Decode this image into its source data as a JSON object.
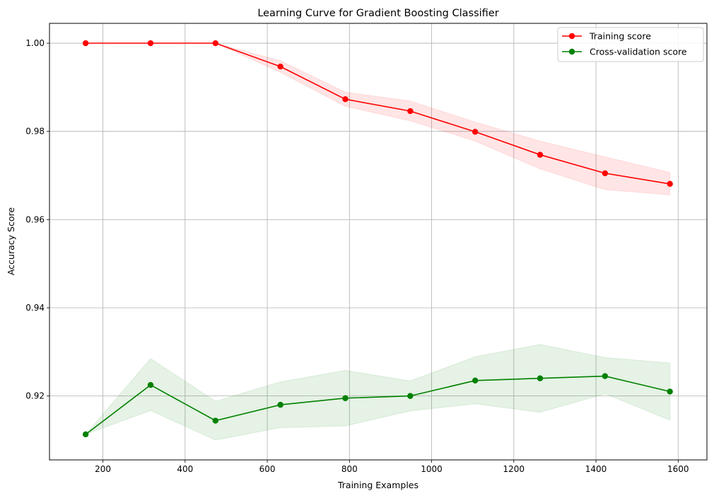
{
  "chart_data": {
    "type": "line",
    "title": "Learning Curve for Gradient Boosting Classifier",
    "xlabel": "Training Examples",
    "ylabel": "Accuracy Score",
    "xlim": [
      70,
      1670
    ],
    "ylim": [
      0.9055,
      1.0045
    ],
    "xticks": [
      200,
      400,
      600,
      800,
      1000,
      1200,
      1400,
      1600
    ],
    "yticks": [
      0.92,
      0.94,
      0.96,
      0.98,
      1.0
    ],
    "ytick_labels": [
      "0.92",
      "0.94",
      "0.96",
      "0.98",
      "1.00"
    ],
    "grid": true,
    "legend_position": "top-right",
    "x": [
      158,
      316,
      474,
      632,
      790,
      948,
      1106,
      1264,
      1422,
      1580
    ],
    "series": [
      {
        "name": "Training score",
        "color": "#ff0000",
        "band_color": "#ff0000",
        "values": [
          1.0,
          1.0,
          1.0,
          0.9947,
          0.9873,
          0.9846,
          0.9799,
          0.9747,
          0.9705,
          0.9681
        ],
        "lower": [
          1.0,
          1.0,
          1.0,
          0.9934,
          0.9857,
          0.9824,
          0.9778,
          0.9715,
          0.9668,
          0.9656
        ],
        "upper": [
          1.0,
          1.0,
          1.0,
          0.996,
          0.9889,
          0.9869,
          0.9821,
          0.9778,
          0.9742,
          0.9707
        ]
      },
      {
        "name": "Cross-validation score",
        "color": "#008000",
        "band_color": "#008000",
        "values": [
          0.9113,
          0.9225,
          0.9144,
          0.918,
          0.9195,
          0.92,
          0.9235,
          0.924,
          0.9245,
          0.921
        ],
        "lower": [
          0.9113,
          0.9167,
          0.91,
          0.9128,
          0.9132,
          0.9166,
          0.9182,
          0.9163,
          0.9205,
          0.9145
        ],
        "upper": [
          0.9113,
          0.9285,
          0.9188,
          0.9232,
          0.9258,
          0.9234,
          0.9289,
          0.9317,
          0.9287,
          0.9275
        ]
      }
    ]
  }
}
